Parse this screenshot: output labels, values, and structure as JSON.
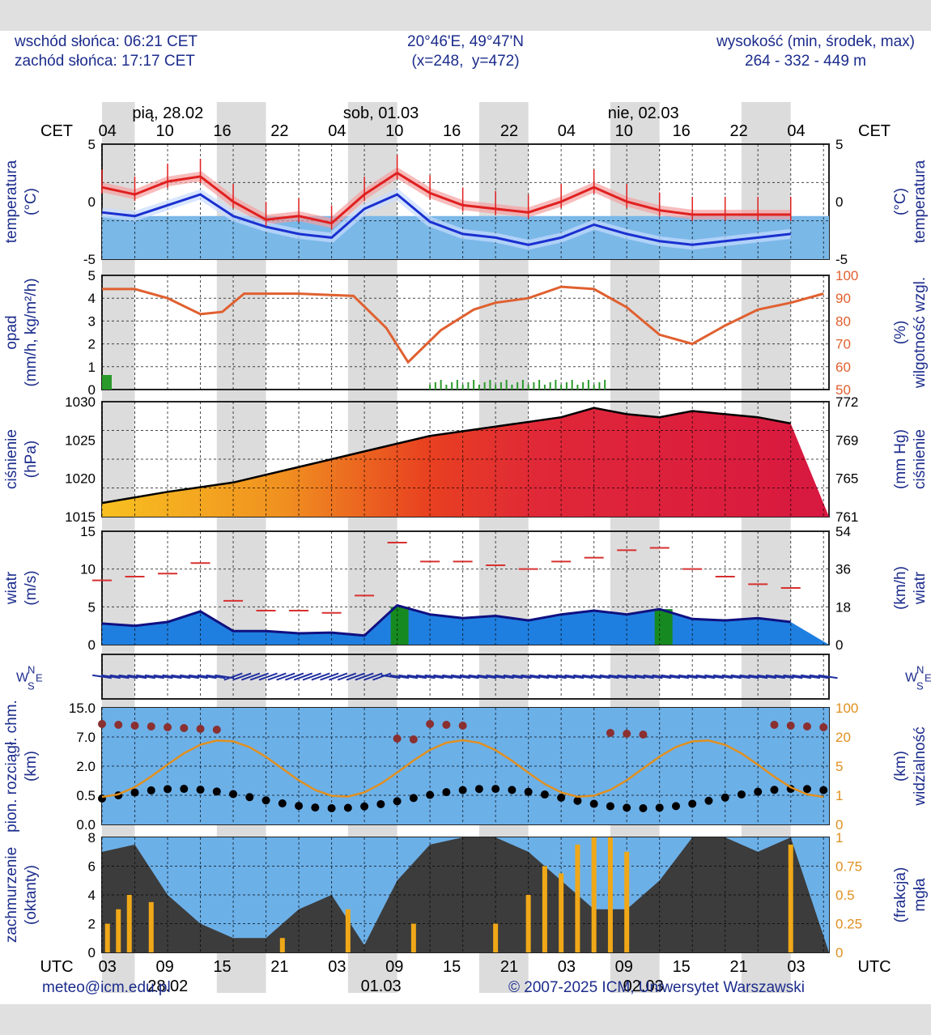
{
  "header": {
    "sunrise": "wschód słońca: 06:21 CET",
    "sunset": "zachód słońca: 17:17 CET",
    "coords": "20°46'E, 49°47'N",
    "grid": "(x=248,  y=472)",
    "elev_label": "wysokość (min, środek, max)",
    "elev_values": "264 - 332 - 449 m"
  },
  "time_axis": {
    "cet_label": "CET",
    "utc_label": "UTC",
    "days_top": [
      "pią, 28.02",
      "sob, 01.03",
      "nie, 02.03"
    ],
    "days_bottom": [
      "28.02",
      "01.03",
      "02.03"
    ],
    "cet_ticks": [
      "04",
      "10",
      "16",
      "22",
      "04",
      "10",
      "16",
      "22",
      "04",
      "10",
      "16",
      "22",
      "04"
    ],
    "utc_ticks": [
      "03",
      "09",
      "15",
      "21",
      "03",
      "09",
      "15",
      "21",
      "03",
      "09",
      "15",
      "21",
      "03"
    ]
  },
  "panels": {
    "temperature": {
      "ylabel": "temperatura",
      "unit": "(°C)",
      "ticks": [
        "5",
        "0",
        "-5"
      ]
    },
    "precip": {
      "ylabel": "opad",
      "unit": "(mm/h, kg/m²/h)",
      "ticks": [
        "5",
        "4",
        "3",
        "2",
        "1",
        "0"
      ],
      "rlabel": "wilgotność wzgl.",
      "runit": "(%)",
      "rticks": [
        "100",
        "90",
        "80",
        "70",
        "60",
        "50"
      ]
    },
    "pressure": {
      "ylabel": "ciśnienie",
      "unit": "(hPa)",
      "ticks": [
        "1030",
        "1025",
        "1020",
        "1015"
      ],
      "rlabel": "ciśnienie",
      "runit": "(mm Hg)",
      "rticks": [
        "772",
        "769",
        "765",
        "761"
      ]
    },
    "wind": {
      "ylabel": "wiatr",
      "unit": "(m/s)",
      "ticks": [
        "15",
        "10",
        "5",
        "0"
      ],
      "rlabel": "wiatr",
      "runit": "(km/h)",
      "rticks": [
        "54",
        "36",
        "18",
        "0"
      ]
    },
    "winddir": {
      "compass": "WNSE"
    },
    "clouds": {
      "ylabel": "pion. rozciągł. chm.",
      "unit": "(km)",
      "ticks": [
        "15.0",
        "7.0",
        "2.0",
        "0.5",
        "0.0"
      ],
      "rlabel": "widzialność",
      "runit": "(km)",
      "rticks": [
        "100",
        "20",
        "5",
        "1",
        "0"
      ]
    },
    "cover": {
      "ylabel": "zachmurzenie",
      "unit": "(oktanty)",
      "ticks": [
        "8",
        "6",
        "4",
        "2",
        "0"
      ],
      "rlabel": "mgła",
      "runit": "(frakcja)",
      "rticks": [
        "1",
        "0.75",
        "0.5",
        "0.25",
        "0"
      ]
    }
  },
  "colors": {
    "temp_red": "#e02020",
    "temp_blue": "#1a30d0",
    "humidity": "#e06030",
    "pressure_line": "#000000",
    "wind_gust": "#d83030",
    "fog_bar": "#f0a818",
    "visibility": "#e09020",
    "text_navy": "#1c2c8c",
    "night_bg": "#dcdcdc"
  },
  "chart_data": [
    {
      "type": "line",
      "title": "temperatura",
      "x_unit": "hours from 28.02 03:00 CET",
      "ylim": [
        -6,
        10
      ],
      "series": [
        {
          "values": [
            [
              0,
              4
            ],
            [
              6,
              3
            ],
            [
              12,
              4.8
            ],
            [
              18,
              5.5
            ],
            [
              24,
              2
            ],
            [
              30,
              -0.5
            ],
            [
              36,
              0
            ],
            [
              42,
              -1
            ],
            [
              48,
              3
            ],
            [
              54,
              6
            ],
            [
              60,
              3.2
            ],
            [
              66,
              1.5
            ],
            [
              72,
              1
            ],
            [
              78,
              0.5
            ],
            [
              84,
              2
            ],
            [
              90,
              4
            ],
            [
              96,
              2
            ],
            [
              102,
              0.8
            ],
            [
              108,
              0.2
            ],
            [
              114,
              0.2
            ],
            [
              120,
              0.2
            ],
            [
              126,
              0.2
            ]
          ]
        },
        {
          "values": [
            [
              0,
              0.5
            ],
            [
              6,
              0
            ],
            [
              12,
              1.5
            ],
            [
              18,
              3
            ],
            [
              24,
              0
            ],
            [
              30,
              -1.5
            ],
            [
              36,
              -2.5
            ],
            [
              42,
              -3
            ],
            [
              48,
              1
            ],
            [
              54,
              3
            ],
            [
              60,
              -0.8
            ],
            [
              66,
              -2.5
            ],
            [
              72,
              -3
            ],
            [
              78,
              -4
            ],
            [
              84,
              -3
            ],
            [
              90,
              -1.2
            ],
            [
              96,
              -2.5
            ],
            [
              102,
              -3.5
            ],
            [
              108,
              -4
            ],
            [
              114,
              -3.5
            ],
            [
              120,
              -3
            ],
            [
              126,
              -2.5
            ]
          ]
        }
      ]
    },
    {
      "type": "line",
      "title": "opad / wilgotność wzgl.",
      "series": [
        {
          "values": [
            [
              0,
              94
            ],
            [
              6,
              94
            ],
            [
              12,
              90
            ],
            [
              18,
              83
            ],
            [
              22,
              84
            ],
            [
              26,
              92
            ],
            [
              36,
              92
            ],
            [
              46,
              91
            ],
            [
              52,
              77
            ],
            [
              56,
              62
            ],
            [
              62,
              76
            ],
            [
              68,
              85
            ],
            [
              72,
              88
            ],
            [
              78,
              90
            ],
            [
              84,
              95
            ],
            [
              90,
              94
            ],
            [
              96,
              86
            ],
            [
              102,
              74
            ],
            [
              108,
              70
            ],
            [
              114,
              78
            ],
            [
              120,
              85
            ],
            [
              126,
              88
            ],
            [
              132,
              92
            ]
          ]
        }
      ]
    },
    {
      "type": "area",
      "title": "ciśnienie",
      "ylim": [
        1015,
        1034
      ],
      "series": [
        {
          "values": [
            [
              0,
              1017.2
            ],
            [
              12,
              1019
            ],
            [
              24,
              1020.5
            ],
            [
              36,
              1023
            ],
            [
              48,
              1025.5
            ],
            [
              60,
              1028
            ],
            [
              72,
              1029.5
            ],
            [
              84,
              1031
            ],
            [
              90,
              1032.5
            ],
            [
              96,
              1031.5
            ],
            [
              102,
              1031
            ],
            [
              108,
              1032
            ],
            [
              114,
              1031.5
            ],
            [
              120,
              1031
            ],
            [
              126,
              1030
            ]
          ]
        }
      ]
    },
    {
      "type": "line",
      "title": "wiatr",
      "ylim": [
        0,
        15
      ],
      "series": [
        {
          "values": [
            [
              0,
              2.8
            ],
            [
              6,
              2.5
            ],
            [
              12,
              3
            ],
            [
              18,
              4.4
            ],
            [
              24,
              1.8
            ],
            [
              30,
              1.8
            ],
            [
              36,
              1.5
            ],
            [
              42,
              1.6
            ],
            [
              48,
              1.2
            ],
            [
              54,
              5.2
            ],
            [
              60,
              4
            ],
            [
              66,
              3.5
            ],
            [
              72,
              3.8
            ],
            [
              78,
              3.2
            ],
            [
              84,
              4
            ],
            [
              90,
              4.5
            ],
            [
              96,
              4
            ],
            [
              102,
              4.7
            ],
            [
              108,
              3.4
            ],
            [
              114,
              3.2
            ],
            [
              120,
              3.5
            ],
            [
              126,
              3
            ]
          ]
        },
        {
          "values": [
            [
              0,
              8.5
            ],
            [
              6,
              9
            ],
            [
              12,
              9.4
            ],
            [
              18,
              10.8
            ],
            [
              24,
              5.8
            ],
            [
              30,
              4.5
            ],
            [
              36,
              4.5
            ],
            [
              42,
              4.2
            ],
            [
              48,
              6.5
            ],
            [
              54,
              13.5
            ],
            [
              60,
              11
            ],
            [
              66,
              11
            ],
            [
              72,
              10.5
            ],
            [
              78,
              10
            ],
            [
              84,
              11
            ],
            [
              90,
              11.5
            ],
            [
              96,
              12.5
            ],
            [
              102,
              12.8
            ],
            [
              108,
              10
            ],
            [
              114,
              9
            ],
            [
              120,
              8
            ],
            [
              126,
              7.5
            ]
          ]
        }
      ]
    },
    {
      "type": "line",
      "title": "zachmurzenie / mgła",
      "ylim": [
        0,
        8
      ],
      "series": [
        {
          "values": [
            [
              0,
              7
            ],
            [
              6,
              7.5
            ],
            [
              12,
              4
            ],
            [
              18,
              2
            ],
            [
              24,
              1
            ],
            [
              30,
              1
            ],
            [
              36,
              3
            ],
            [
              42,
              4
            ],
            [
              48,
              0.5
            ],
            [
              54,
              5
            ],
            [
              60,
              7.5
            ],
            [
              66,
              8
            ],
            [
              72,
              8
            ],
            [
              78,
              7
            ],
            [
              84,
              5
            ],
            [
              90,
              3
            ],
            [
              96,
              3
            ],
            [
              102,
              5
            ],
            [
              108,
              8
            ],
            [
              114,
              8
            ],
            [
              120,
              7
            ],
            [
              126,
              8
            ]
          ]
        }
      ]
    }
  ]
}
